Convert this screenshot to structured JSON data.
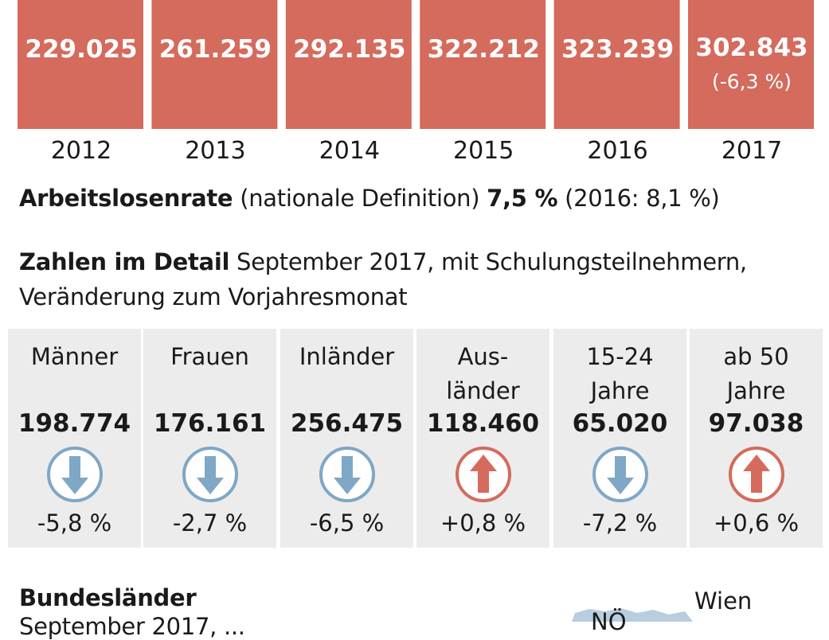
{
  "colors": {
    "bar": "#d46b5d",
    "down": "#7fa7c6",
    "up": "#d46b5d",
    "card_bg": "#ececec"
  },
  "chart_data": [
    {
      "type": "bar",
      "categories": [
        "2012",
        "2013",
        "2014",
        "2015",
        "2016",
        "2017"
      ],
      "values": [
        229025,
        261259,
        292135,
        322212,
        323239,
        302843
      ],
      "value_labels": [
        "229.025",
        "261.259",
        "292.135",
        "322.212",
        "323.239",
        "302.843"
      ],
      "annotations": [
        "",
        "",
        "",
        "",
        "",
        "(-6,3 %)"
      ]
    },
    {
      "type": "table",
      "categories": [
        "Männer",
        "Frauen",
        "Inländer",
        "Aus-länder",
        "15-24 Jahre",
        "ab 50 Jahre"
      ],
      "values": [
        198774,
        176161,
        256475,
        118460,
        65020,
        97038
      ],
      "changes_percent": [
        -5.8,
        -2.7,
        -6.5,
        0.8,
        -7.2,
        0.6
      ]
    }
  ],
  "rate": {
    "label": "Arbeitslosenrate",
    "definition": "(nationale Definition)",
    "value": "7,5 %",
    "previous": "(2016: 8,1 %)"
  },
  "detail": {
    "title": "Zahlen im Detail",
    "subtitle_line1": "September 2017, mit Schulungsteilnehmern,",
    "subtitle_line2": "Veränderung zum Vorjahresmonat"
  },
  "cards": [
    {
      "label1": "Männer",
      "label2": "",
      "value": "198.774",
      "change": "-5,8 %",
      "direction": "down",
      "icon": "arrow-down-icon"
    },
    {
      "label1": "Frauen",
      "label2": "",
      "value": "176.161",
      "change": "-2,7 %",
      "direction": "down",
      "icon": "arrow-down-icon"
    },
    {
      "label1": "Inländer",
      "label2": "",
      "value": "256.475",
      "change": "-6,5 %",
      "direction": "down",
      "icon": "arrow-down-icon"
    },
    {
      "label1": "Aus-",
      "label2": "länder",
      "value": "118.460",
      "change": "+0,8 %",
      "direction": "up",
      "icon": "arrow-up-icon"
    },
    {
      "label1": "15-24",
      "label2": "Jahre",
      "value": "65.020",
      "change": "-7,2 %",
      "direction": "down",
      "icon": "arrow-down-icon"
    },
    {
      "label1": "ab 50",
      "label2": "Jahre",
      "value": "97.038",
      "change": "+0,6 %",
      "direction": "up",
      "icon": "arrow-up-icon"
    }
  ],
  "states": {
    "title": "Bundesländer",
    "subtitle": "September 2017, ...",
    "labels": [
      "NÖ",
      "Wien"
    ]
  }
}
